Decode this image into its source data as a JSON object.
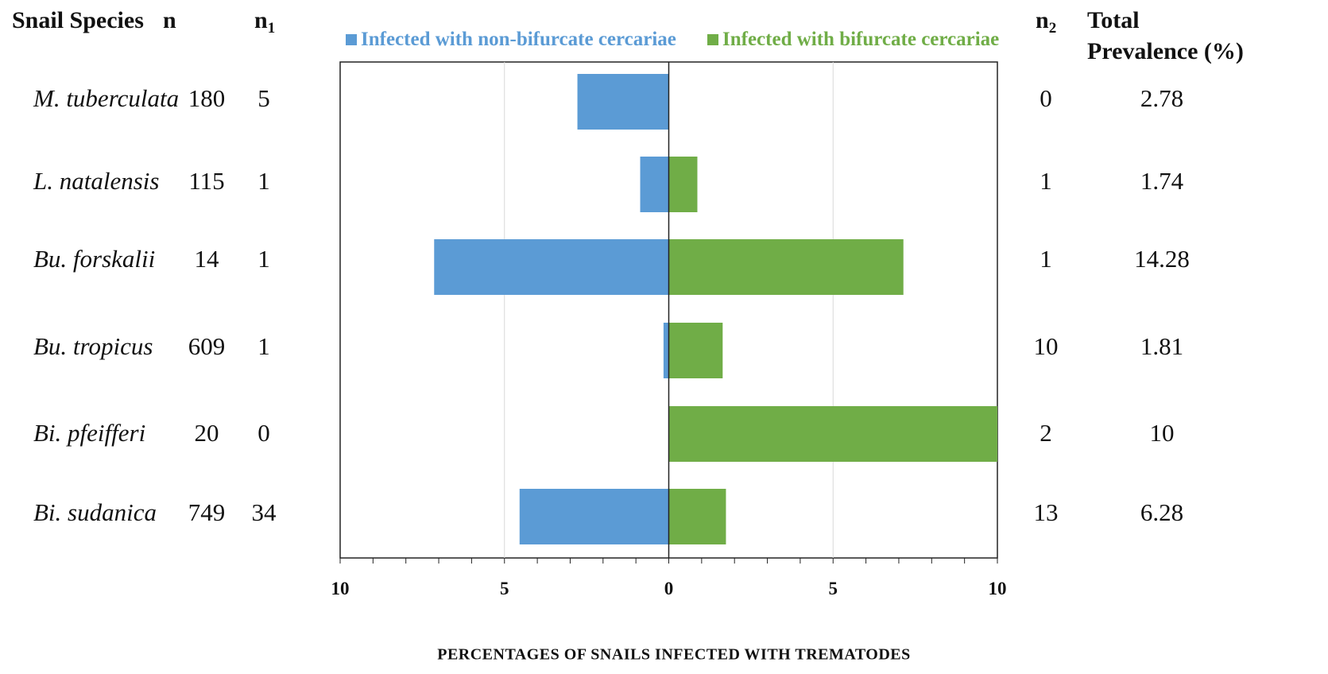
{
  "table_headers": {
    "species": "Snail Species",
    "n": "n",
    "n1": {
      "base": "n",
      "sub": "1"
    },
    "n2": {
      "base": "n",
      "sub": "2"
    },
    "total_line1": "Total",
    "total_line2": "Prevalence (%)"
  },
  "rows": [
    {
      "species": "M. tuberculata",
      "n": "180",
      "n1": "5",
      "n2": "0",
      "total": "2.78"
    },
    {
      "species": "L. natalensis",
      "n": "115",
      "n1": "1",
      "n2": "1",
      "total": "1.74"
    },
    {
      "species": "Bu. forskalii",
      "n": "14",
      "n1": "1",
      "n2": "1",
      "total": "14.28"
    },
    {
      "species": "Bu. tropicus",
      "n": "609",
      "n1": "1",
      "n2": "10",
      "total": "1.81"
    },
    {
      "species": "Bi. pfeifferi",
      "n": "20",
      "n1": "0",
      "n2": "2",
      "total": "10"
    },
    {
      "species": "Bi. sudanica",
      "n": "749",
      "n1": "34",
      "n2": "13",
      "total": "6.28"
    }
  ],
  "chart_data": {
    "type": "bar",
    "orientation": "horizontal-diverging",
    "categories": [
      "M. tuberculata",
      "L. natalensis",
      "Bu. forskalii",
      "Bu. tropicus",
      "Bi. pfeifferi",
      "Bi. sudanica"
    ],
    "series": [
      {
        "name": "Infected with non-bifurcate cercariae",
        "side": "left",
        "color": "#5b9bd5",
        "values": [
          2.78,
          0.87,
          7.14,
          0.16,
          0,
          4.54
        ]
      },
      {
        "name": "Infected with bifurcate cercariae",
        "side": "right",
        "color": "#70ad47",
        "values": [
          0,
          0.87,
          7.14,
          1.64,
          10,
          1.74
        ]
      }
    ],
    "xlabel": "PERCENTAGES OF SNAILS INFECTED WITH TREMATODES",
    "xlim": [
      -10,
      10
    ],
    "x_tick_labels": [
      "10",
      "5",
      "0",
      "5",
      "10"
    ],
    "grid": "vertical",
    "legend": "top"
  }
}
